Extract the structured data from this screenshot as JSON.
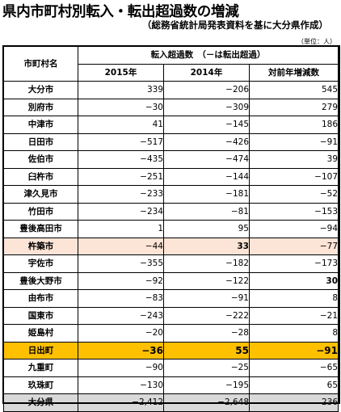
{
  "title": "県内市町村別転入・転出超過数の増減",
  "subtitle": "（総務省統計局発表資料を基に大分県作成）",
  "unit": "（単位：人）",
  "table": {
    "name_header": "市町村名",
    "group_header": "転入超過数　（－は転出超過）",
    "col_2015": "2015年",
    "col_2014": "2014年",
    "col_diff": "対前年増減数",
    "rows": [
      {
        "name": "大分市",
        "v2015": "339",
        "v2014": "−206",
        "diff": "545"
      },
      {
        "name": "別府市",
        "v2015": "−30",
        "v2014": "−309",
        "diff": "279"
      },
      {
        "name": "中津市",
        "v2015": "41",
        "v2014": "−145",
        "diff": "186"
      },
      {
        "name": "日田市",
        "v2015": "−517",
        "v2014": "−426",
        "diff": "−91"
      },
      {
        "name": "佐伯市",
        "v2015": "−435",
        "v2014": "−474",
        "diff": "39"
      },
      {
        "name": "臼杵市",
        "v2015": "−251",
        "v2014": "−144",
        "diff": "−107"
      },
      {
        "name": "津久見市",
        "v2015": "−233",
        "v2014": "−181",
        "diff": "−52"
      },
      {
        "name": "竹田市",
        "v2015": "−234",
        "v2014": "−81",
        "diff": "−153"
      },
      {
        "name": "豊後高田市",
        "v2015": "1",
        "v2014": "95",
        "diff": "−94"
      },
      {
        "name": "杵築市",
        "v2015": "−44",
        "v2014": "33",
        "diff": "−77"
      },
      {
        "name": "宇佐市",
        "v2015": "−355",
        "v2014": "−182",
        "diff": "−173"
      },
      {
        "name": "豊後大野市",
        "v2015": "−92",
        "v2014": "−122",
        "diff": "30"
      },
      {
        "name": "由布市",
        "v2015": "−83",
        "v2014": "−91",
        "diff": "8"
      },
      {
        "name": "国東市",
        "v2015": "−243",
        "v2014": "−222",
        "diff": "−21"
      },
      {
        "name": "姫島村",
        "v2015": "−20",
        "v2014": "−28",
        "diff": "8"
      },
      {
        "name": "日出町",
        "v2015": "−36",
        "v2014": "55",
        "diff": "−91"
      },
      {
        "name": "九重町",
        "v2015": "−90",
        "v2014": "−25",
        "diff": "−65"
      },
      {
        "name": "玖珠町",
        "v2015": "−130",
        "v2014": "−195",
        "diff": "65"
      },
      {
        "name": "大分県",
        "v2015": "−2,412",
        "v2014": "−2,648",
        "diff": "236"
      }
    ]
  },
  "colors": {
    "highlight_pink": "#fce4d6",
    "highlight_orange": "#ffc000",
    "total_gray": "#d9d9d9"
  }
}
